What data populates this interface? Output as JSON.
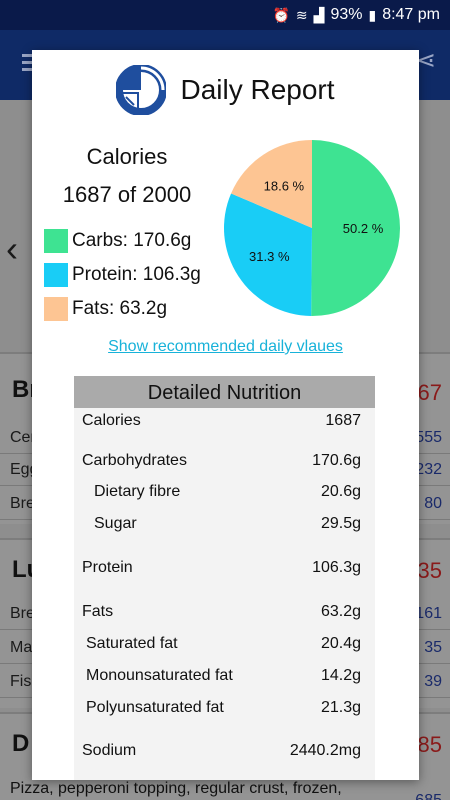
{
  "status": {
    "battery": "93%",
    "time": "8:47 pm"
  },
  "background": {
    "sections": [
      {
        "heading": "Br",
        "value": "67"
      },
      {
        "heading": "Lu",
        "value": "35"
      },
      {
        "heading": "D",
        "value": "85"
      }
    ],
    "rows": [
      {
        "label": "Cer",
        "value": "555"
      },
      {
        "label": "Egg",
        "value": "232"
      },
      {
        "label": "Bre",
        "value": "80"
      },
      {
        "label": "Bre",
        "value": "161"
      },
      {
        "label": "Ma",
        "value": "35"
      },
      {
        "label": "Fis",
        "value": "39"
      }
    ],
    "bottom_text": "Pizza, pepperoni topping, regular crust, frozen,",
    "bottom_value": "685"
  },
  "dialog": {
    "title": "Daily Report",
    "calories_label": "Calories",
    "calories_value": "1687 of  2000",
    "legend": [
      {
        "label": "Carbs: 170.6g",
        "color": "#3ee392"
      },
      {
        "label": "Protein: 106.3g",
        "color": "#19cdf6"
      },
      {
        "label": "Fats: 63.2g",
        "color": "#fdc593"
      }
    ],
    "link": "Show recommended daily vlaues",
    "nutrition_header": "Detailed Nutrition",
    "nutrition": [
      {
        "label": "Calories",
        "value": "1687"
      },
      {
        "label": "Carbohydrates",
        "value": "170.6g"
      },
      {
        "label": "Dietary fibre",
        "value": "20.6g"
      },
      {
        "label": "Sugar",
        "value": "29.5g"
      },
      {
        "label": "Protein",
        "value": "106.3g"
      },
      {
        "label": "Fats",
        "value": "63.2g"
      },
      {
        "label": "Saturated fat",
        "value": "20.4g"
      },
      {
        "label": "Monounsaturated fat",
        "value": "14.2g"
      },
      {
        "label": "Polyunsaturated fat",
        "value": "21.3g"
      },
      {
        "label": "Sodium",
        "value": "2440.2mg"
      }
    ]
  },
  "chart_data": {
    "type": "pie",
    "slices": [
      {
        "label": "50.2 %",
        "value": 50.2,
        "color": "#3ee392"
      },
      {
        "label": "31.3 %",
        "value": 31.3,
        "color": "#19cdf6"
      },
      {
        "label": "18.6 %",
        "value": 18.6,
        "color": "#fdc593"
      }
    ]
  }
}
